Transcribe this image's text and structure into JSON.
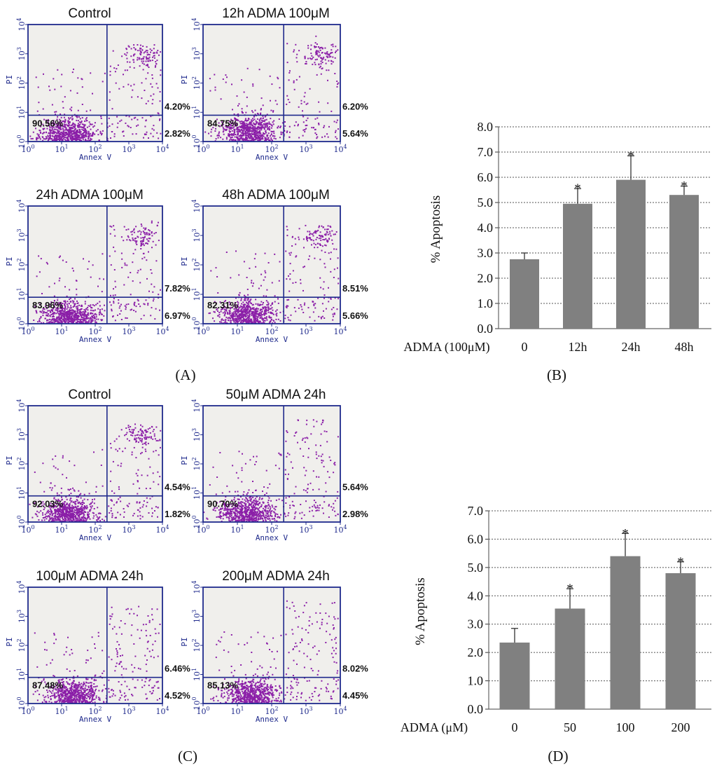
{
  "colors": {
    "frame": "#1f2a8c",
    "dot": "#8b1fa8",
    "bar": "#808080",
    "plot_bg": "#f0efec"
  },
  "panel_labels": [
    "(A)",
    "(B)",
    "(C)",
    "(D)"
  ],
  "flow_axes": {
    "x_label": "Annex V",
    "y_label": "PI",
    "ticks": [
      "0",
      "1",
      "2",
      "3",
      "4"
    ],
    "tick_base": "10"
  },
  "flow_plots": [
    {
      "title": "Control",
      "q_left": "90.56%",
      "q_upper": "4.20%",
      "q_lower": "2.82%",
      "gate": [
        2.35,
        0.9
      ],
      "cluster": {
        "x": 1.2,
        "y": 0.3
      },
      "seed": 11,
      "upper_density": "cluster"
    },
    {
      "title": "12h ADMA 100μM",
      "q_left": "84.75%",
      "q_upper": "6.20%",
      "q_lower": "5.64%",
      "gate": [
        2.35,
        0.9
      ],
      "cluster": {
        "x": 1.3,
        "y": 0.35
      },
      "seed": 23,
      "upper_density": "cluster"
    },
    {
      "title": "24h ADMA 100μM",
      "q_left": "83.96%",
      "q_upper": "7.82%",
      "q_lower": "6.97%",
      "gate": [
        2.35,
        0.9
      ],
      "cluster": {
        "x": 1.25,
        "y": 0.25
      },
      "seed": 37,
      "upper_density": "cluster"
    },
    {
      "title": "48h ADMA 100μM",
      "q_left": "82.31%",
      "q_upper": "8.51%",
      "q_lower": "5.66%",
      "gate": [
        2.35,
        0.9
      ],
      "cluster": {
        "x": 1.3,
        "y": 0.3
      },
      "seed": 41,
      "upper_density": "cluster"
    },
    {
      "title": "Control",
      "q_left": "92.03%",
      "q_upper": "4.54%",
      "q_lower": "1.82%",
      "gate": [
        2.35,
        0.9
      ],
      "cluster": {
        "x": 1.25,
        "y": 0.3
      },
      "seed": 53,
      "upper_density": "cluster"
    },
    {
      "title": "50μM ADMA 24h",
      "q_left": "90.70%",
      "q_upper": "5.64%",
      "q_lower": "2.98%",
      "gate": [
        2.35,
        0.9
      ],
      "cluster": {
        "x": 1.25,
        "y": 0.3
      },
      "seed": 67,
      "upper_density": "sparse"
    },
    {
      "title": "100μM ADMA 24h",
      "q_left": "87.48%",
      "q_upper": "6.46%",
      "q_lower": "4.52%",
      "gate": [
        2.35,
        0.9
      ],
      "cluster": {
        "x": 1.35,
        "y": 0.3
      },
      "seed": 71,
      "upper_density": "sparse"
    },
    {
      "title": "200μM ADMA 24h",
      "q_left": "85.13%",
      "q_upper": "8.02%",
      "q_lower": "4.45%",
      "gate": [
        2.35,
        0.9
      ],
      "cluster": {
        "x": 1.4,
        "y": 0.3
      },
      "seed": 83,
      "upper_density": "sparse"
    }
  ],
  "chart_data": [
    {
      "type": "bar",
      "panel": "(B)",
      "xlabel": "ADMA (100μM)",
      "ylabel": "% Apoptosis",
      "categories": [
        "0",
        "12h",
        "24h",
        "48h"
      ],
      "values": [
        2.75,
        4.95,
        5.9,
        5.3
      ],
      "errors": [
        0.25,
        0.6,
        0.95,
        0.35
      ],
      "significant": [
        false,
        true,
        true,
        true
      ],
      "ylim": [
        0,
        8
      ],
      "yticks": [
        "0.0",
        "1.0",
        "2.0",
        "3.0",
        "4.0",
        "5.0",
        "6.0",
        "7.0",
        "8.0"
      ],
      "grid": true
    },
    {
      "type": "bar",
      "panel": "(D)",
      "xlabel": "ADMA (μM)",
      "ylabel": "% Apoptosis",
      "categories": [
        "0",
        "50",
        "100",
        "200"
      ],
      "values": [
        2.35,
        3.55,
        5.4,
        4.8
      ],
      "errors": [
        0.5,
        0.7,
        0.8,
        0.4
      ],
      "significant": [
        false,
        true,
        true,
        true
      ],
      "ylim": [
        0,
        7
      ],
      "yticks": [
        "0.0",
        "1.0",
        "2.0",
        "3.0",
        "4.0",
        "5.0",
        "6.0",
        "7.0"
      ],
      "grid": true
    }
  ],
  "significance_marker": "*"
}
